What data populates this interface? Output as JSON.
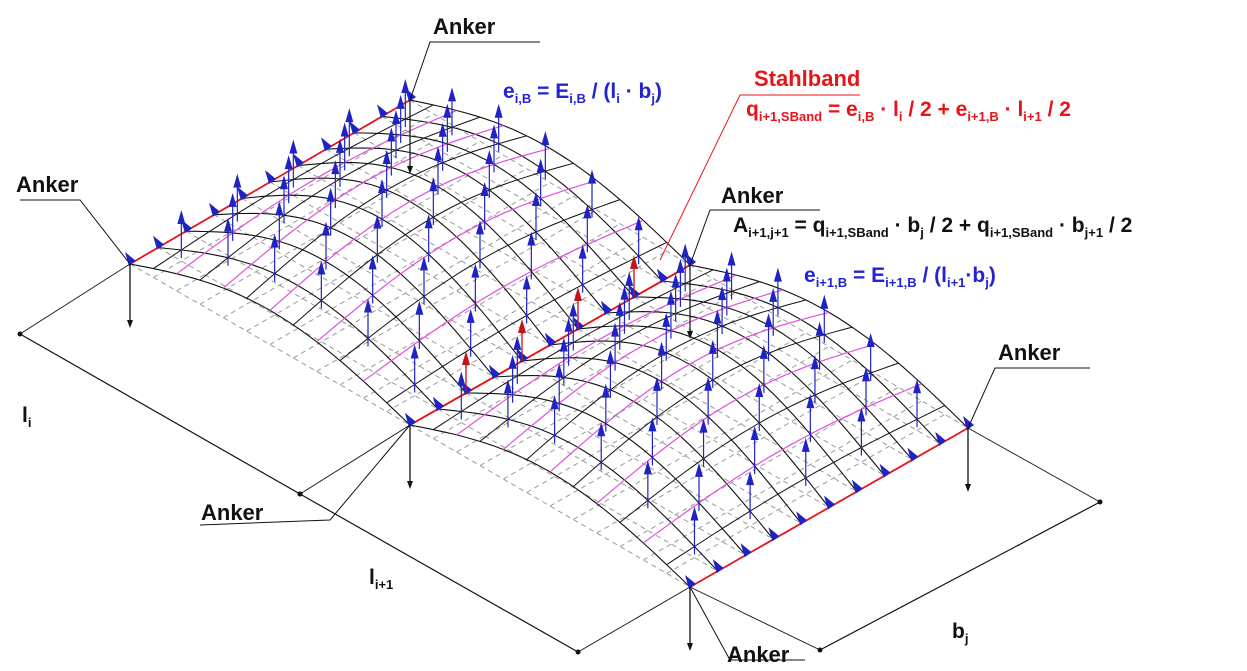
{
  "colors": {
    "steel_band": "#e8141b",
    "load_arrow": "#1f23c4",
    "reaction_arrow": "#c0141b",
    "membrane_line": "#111111",
    "pink_line": "#e050e0",
    "dashed_grid": "#9a9a9a"
  },
  "labels": {
    "anker_top": "Anker",
    "anker_left": "Anker",
    "anker_mid": "Anker",
    "anker_right": "Anker",
    "anker_lower_left": "Anker",
    "anker_bottom": "Anker",
    "stahlband": "Stahlband"
  },
  "formulas": {
    "e_iB": {
      "lhs": "e",
      "lhs_sub": "i,B",
      "eq": " = E",
      "e_sub": "i,B",
      "rest": " / (l",
      "l_sub": "i",
      "mid": " · b",
      "b_sub": "j",
      "end": ")"
    },
    "q_sband": {
      "q": "q",
      "q_sub": "i+1,SBand",
      "eq": " = e",
      "e1_sub": "i,B",
      "p1": " · l",
      "l1_sub": "i",
      "p2": " / 2 + e",
      "e2_sub": "i+1,B",
      "p3": " · l",
      "l2_sub": "i+1",
      "p4": " / 2"
    },
    "A": {
      "a": "A",
      "a_sub": "i+1,j+1",
      "eq": " = q",
      "q1_sub": "i+1,SBand",
      "p1": " · b",
      "b1_sub": "j",
      "p2": " / 2 + q",
      "q2_sub": "i+1,SBand",
      "p3": " · b",
      "b2_sub": "j+1",
      "p4": " / 2"
    },
    "e_i1B": {
      "lhs": "e",
      "lhs_sub": "i+1,B",
      "eq": " = E",
      "e_sub": "i+1,B",
      "rest": " / (l",
      "l_sub": "i+1",
      "mid": "·b",
      "b_sub": "j",
      "end": ")"
    }
  },
  "dimensions": {
    "li": {
      "base": "l",
      "sub": "i"
    },
    "li1": {
      "base": "l",
      "sub": "i+1"
    },
    "bj": {
      "base": "b",
      "sub": "j"
    }
  }
}
